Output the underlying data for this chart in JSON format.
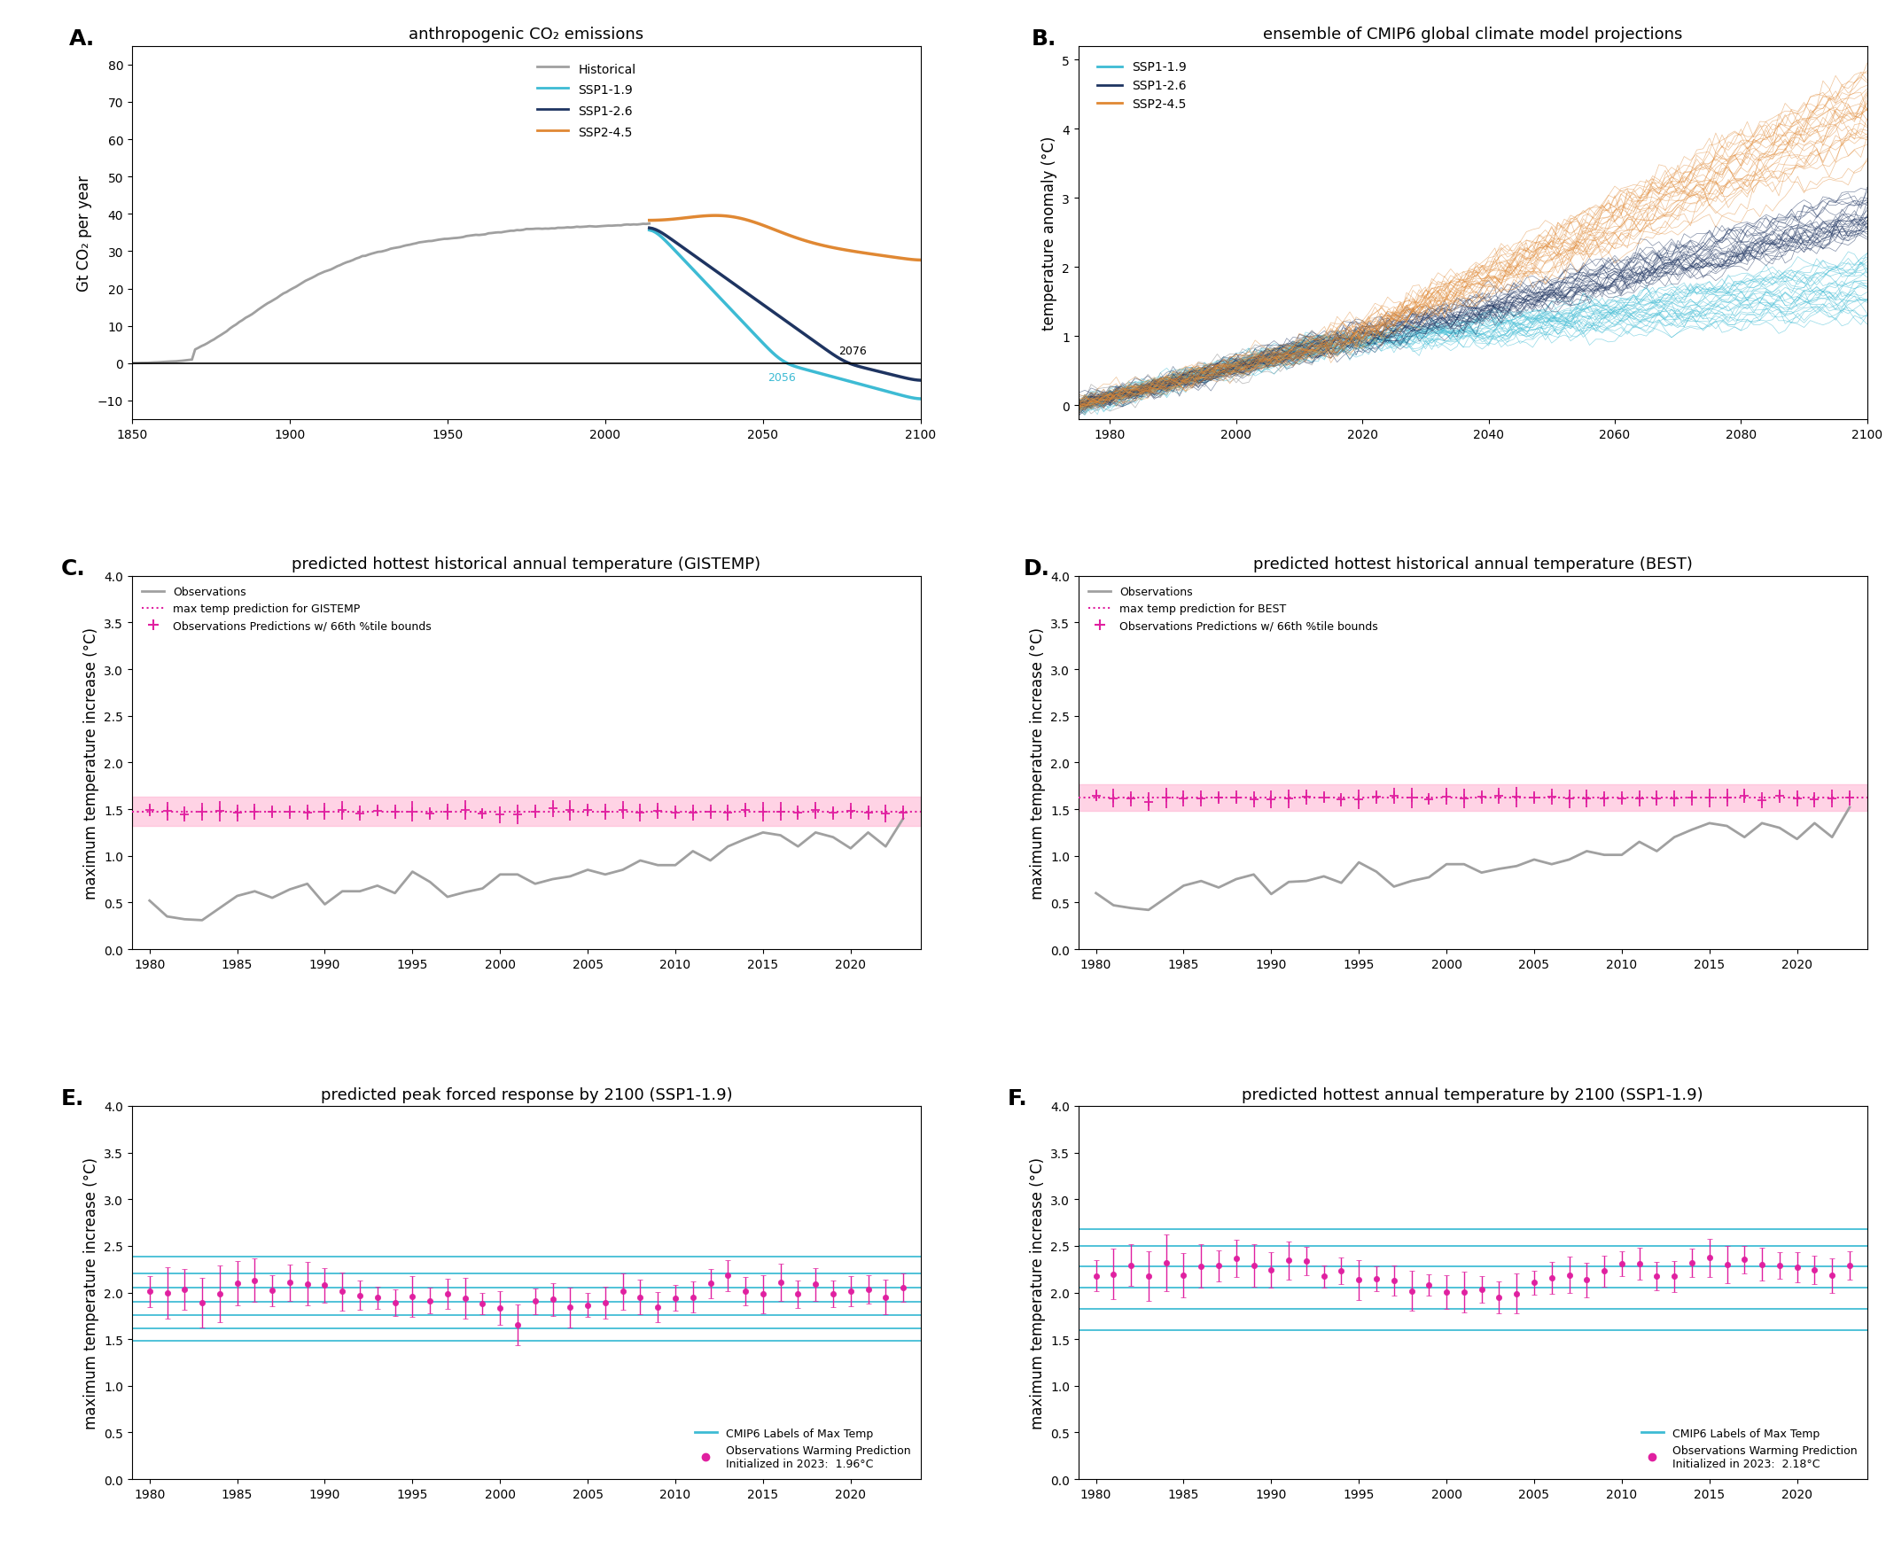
{
  "panel_A": {
    "title": "anthropogenic CO₂ emissions",
    "ylabel": "Gt CO₂ per year",
    "xlim": [
      1850,
      2100
    ],
    "ylim": [
      -15,
      85
    ],
    "yticks": [
      -10,
      0,
      10,
      20,
      30,
      40,
      50,
      60,
      70,
      80
    ],
    "xticks": [
      1850,
      1900,
      1950,
      2000,
      2050,
      2100
    ],
    "hist_color": "#a0a0a0",
    "ssp119_color": "#3dbbd4",
    "ssp126_color": "#1e3461",
    "ssp245_color": "#e08833",
    "label_2056": "2056",
    "label_2076": "2076"
  },
  "panel_B": {
    "title": "ensemble of CMIP6 global climate model projections",
    "ylabel": "temperature anomaly (°C)",
    "xlim": [
      1975,
      2100
    ],
    "ylim": [
      -0.2,
      5.2
    ],
    "yticks": [
      0,
      1,
      2,
      3,
      4,
      5
    ],
    "xticks": [
      1980,
      2000,
      2020,
      2040,
      2060,
      2080,
      2100
    ],
    "ssp119_color": "#3dbbd4",
    "ssp126_color": "#1e3461",
    "ssp245_color": "#e08833",
    "hist_color": "#a0a0a0"
  },
  "panel_C": {
    "title": "predicted hottest historical annual temperature (GISTEMP)",
    "ylabel": "maximum temperature increase (°C)",
    "xlim": [
      1979,
      2024
    ],
    "ylim": [
      0.0,
      4.0
    ],
    "yticks": [
      0.0,
      0.5,
      1.0,
      1.5,
      2.0,
      2.5,
      3.0,
      3.5,
      4.0
    ],
    "xticks": [
      1980,
      1985,
      1990,
      1995,
      2000,
      2005,
      2010,
      2015,
      2020
    ],
    "obs_color": "#a0a0a0",
    "pred_color": "#e020a0",
    "band_color": "#ffb0d0",
    "pred_level": 1.47,
    "band_low": 1.32,
    "band_high": 1.63
  },
  "panel_D": {
    "title": "predicted hottest historical annual temperature (BEST)",
    "ylabel": "maximum temperature increase (°C)",
    "xlim": [
      1979,
      2024
    ],
    "ylim": [
      0.0,
      4.0
    ],
    "yticks": [
      0.0,
      0.5,
      1.0,
      1.5,
      2.0,
      2.5,
      3.0,
      3.5,
      4.0
    ],
    "xticks": [
      1980,
      1985,
      1990,
      1995,
      2000,
      2005,
      2010,
      2015,
      2020
    ],
    "obs_color": "#a0a0a0",
    "pred_color": "#e020a0",
    "band_color": "#ffb0d0",
    "pred_level": 1.62,
    "band_low": 1.48,
    "band_high": 1.77
  },
  "panel_E": {
    "title": "predicted peak forced response by 2100 (SSP1-1.9)",
    "ylabel": "maximum temperature increase (°C)",
    "xlim": [
      1979,
      2024
    ],
    "ylim": [
      0.0,
      4.0
    ],
    "yticks": [
      0.0,
      0.5,
      1.0,
      1.5,
      2.0,
      2.5,
      3.0,
      3.5,
      4.0
    ],
    "xticks": [
      1980,
      1985,
      1990,
      1995,
      2000,
      2005,
      2010,
      2015,
      2020
    ],
    "cmip6_lines": [
      1.48,
      1.62,
      1.76,
      1.9,
      2.05,
      2.2,
      2.38
    ],
    "cmip6_color": "#3dbbd4",
    "pred_color": "#e020a0",
    "pred_mean": 1.96,
    "init_label": "Initialized in 2023:  1.96°C"
  },
  "panel_F": {
    "title": "predicted hottest annual temperature by 2100 (SSP1-1.9)",
    "ylabel": "maximum temperature increase (°C)",
    "xlim": [
      1979,
      2024
    ],
    "ylim": [
      0.0,
      4.0
    ],
    "yticks": [
      0.0,
      0.5,
      1.0,
      1.5,
      2.0,
      2.5,
      3.0,
      3.5,
      4.0
    ],
    "xticks": [
      1980,
      1985,
      1990,
      1995,
      2000,
      2005,
      2010,
      2015,
      2020
    ],
    "cmip6_lines": [
      1.6,
      1.82,
      2.05,
      2.28,
      2.5,
      2.68
    ],
    "cmip6_color": "#3dbbd4",
    "pred_color": "#e020a0",
    "pred_mean": 2.18,
    "init_label": "Initialized in 2023:  2.18°C"
  },
  "background_color": "#ffffff",
  "label_fontsize": 12,
  "title_fontsize": 13,
  "tick_fontsize": 10,
  "panel_label_fontsize": 18
}
